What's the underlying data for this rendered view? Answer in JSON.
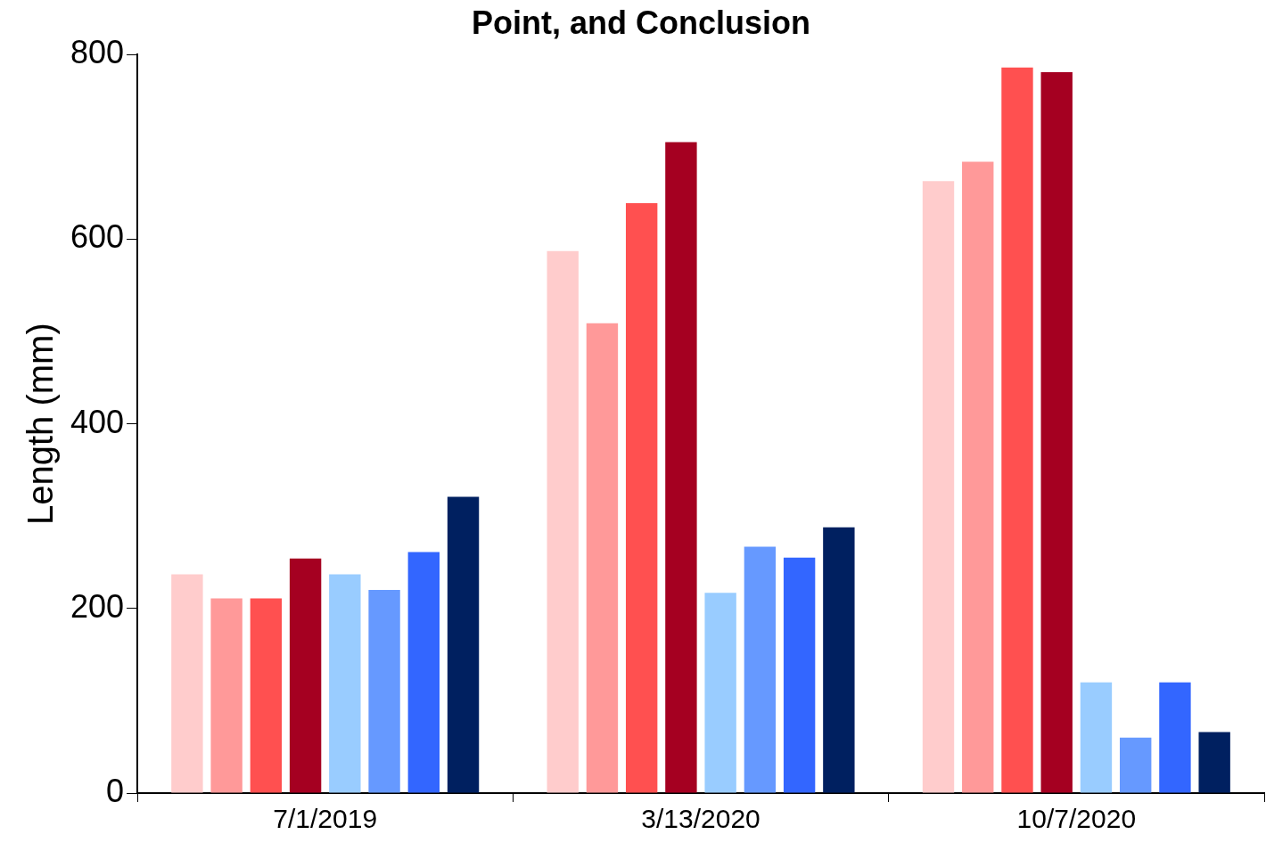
{
  "chart_data": {
    "type": "bar",
    "title": "Point, and Conclusion",
    "ylabel": "Length (mm)",
    "categories": [
      "7/1/2019",
      "3/13/2020",
      "10/7/2020"
    ],
    "series": [
      {
        "color": "#ffcccc",
        "values": [
          237,
          587,
          663
        ]
      },
      {
        "color": "#ff9999",
        "values": [
          211,
          509,
          684
        ]
      },
      {
        "color": "#ff5050",
        "values": [
          211,
          639,
          786
        ]
      },
      {
        "color": "#a50021",
        "values": [
          254,
          705,
          781
        ]
      },
      {
        "color": "#99ccff",
        "values": [
          237,
          217,
          120
        ]
      },
      {
        "color": "#6699ff",
        "values": [
          220,
          267,
          60
        ]
      },
      {
        "color": "#3366ff",
        "values": [
          261,
          255,
          120
        ]
      },
      {
        "color": "#002060",
        "values": [
          321,
          288,
          66
        ]
      }
    ],
    "ylim": [
      0,
      800
    ],
    "yticks": [
      0,
      200,
      400,
      600,
      800
    ],
    "grid": false,
    "legend": false
  }
}
